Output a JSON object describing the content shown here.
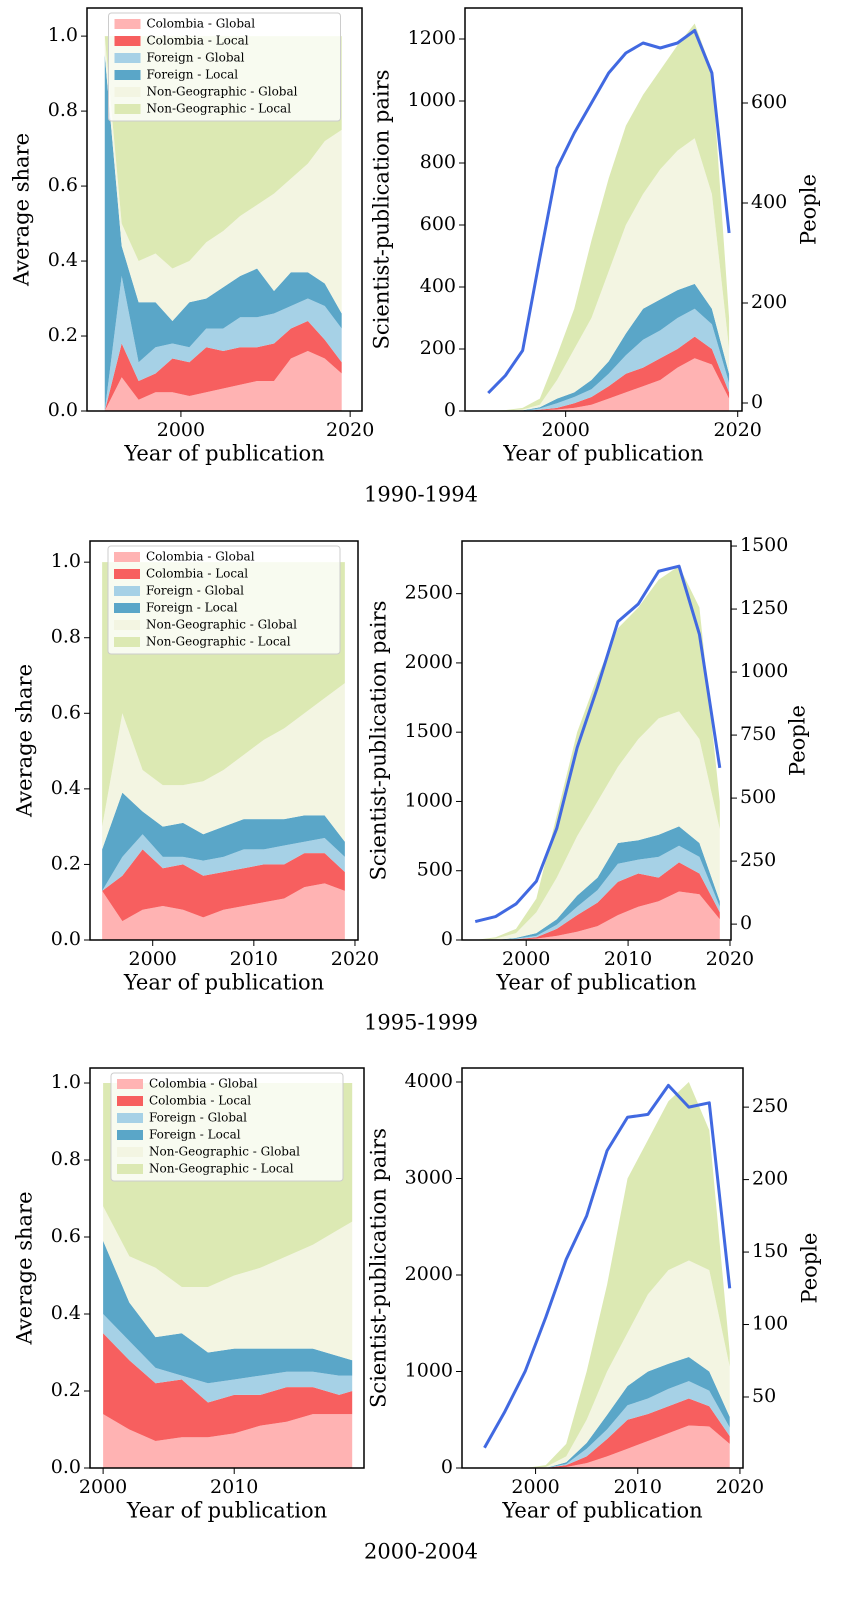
{
  "captions": [
    "1990-1994",
    "1995-1999",
    "2000-2004"
  ],
  "chart_data": [
    {
      "type": "area",
      "xlabel": "Year of publication",
      "ylabel": "Average share",
      "legend": "upper center",
      "x": [
        1991,
        1993,
        1995,
        1997,
        1999,
        2001,
        2003,
        2005,
        2007,
        2009,
        2011,
        2013,
        2015,
        2017,
        2019
      ],
      "xlim": [
        1988.9,
        2021.4
      ],
      "xticks": [
        2000,
        2020
      ],
      "ylim": [
        0,
        1.075
      ],
      "yticks": [
        {
          "value": 0,
          "label": "0.0"
        },
        0.2,
        0.4,
        0.6,
        0.8,
        {
          "value": 1,
          "label": "1.0"
        }
      ],
      "series": [
        {
          "name": "Colombia - Global",
          "color": "#ffb3b3",
          "values": [
            0,
            0.09,
            0.03,
            0.05,
            0.05,
            0.04,
            0.05,
            0.06,
            0.07,
            0.08,
            0.08,
            0.14,
            0.16,
            0.14,
            0.1
          ]
        },
        {
          "name": "Colombia - Local",
          "color": "#f75f5f",
          "values": [
            0,
            0.09,
            0.05,
            0.05,
            0.09,
            0.09,
            0.12,
            0.1,
            0.1,
            0.09,
            0.1,
            0.08,
            0.08,
            0.05,
            0.03
          ]
        },
        {
          "name": "Foreign - Global",
          "color": "#a6d1e6",
          "values": [
            0,
            0.18,
            0.05,
            0.07,
            0.04,
            0.04,
            0.05,
            0.06,
            0.08,
            0.08,
            0.08,
            0.06,
            0.06,
            0.09,
            0.09
          ]
        },
        {
          "name": "Foreign - Local",
          "color": "#5aa6c8",
          "values": [
            0.95,
            0.08,
            0.16,
            0.12,
            0.06,
            0.12,
            0.08,
            0.11,
            0.11,
            0.13,
            0.06,
            0.09,
            0.07,
            0.06,
            0.04
          ]
        },
        {
          "name": "Non-Geographic - Global",
          "color": "#f3f5e2",
          "values": [
            0.05,
            0.06,
            0.11,
            0.13,
            0.14,
            0.11,
            0.15,
            0.15,
            0.16,
            0.17,
            0.26,
            0.25,
            0.29,
            0.38,
            0.49
          ]
        },
        {
          "name": "Non-Geographic - Local",
          "color": "#dce9b3",
          "values": [
            0,
            0.5,
            0.6,
            0.58,
            0.62,
            0.6,
            0.55,
            0.52,
            0.48,
            0.45,
            0.42,
            0.38,
            0.34,
            0.28,
            0.25
          ]
        }
      ]
    },
    {
      "type": "area",
      "xlabel": "Year of publication",
      "ylabel": "Scientist-publication pairs",
      "y2label": "People",
      "x": [
        1991,
        1993,
        1995,
        1997,
        1999,
        2001,
        2003,
        2005,
        2007,
        2009,
        2011,
        2013,
        2015,
        2017,
        2019
      ],
      "xlim": [
        1988.3,
        2020.5
      ],
      "xticks": [
        2000,
        2020
      ],
      "ylim": [
        0,
        1300
      ],
      "yticks": [
        0,
        200,
        400,
        600,
        800,
        1000,
        1200
      ],
      "y2lim": [
        -16,
        790
      ],
      "y2ticks": [
        0,
        200,
        400,
        600
      ],
      "series": [
        {
          "color": "#ffb3b3",
          "values": [
            0,
            0,
            0,
            2,
            5,
            10,
            20,
            40,
            60,
            80,
            100,
            140,
            170,
            150,
            40
          ]
        },
        {
          "color": "#f75f5f",
          "values": [
            0,
            0,
            0,
            2,
            5,
            15,
            25,
            40,
            60,
            60,
            70,
            60,
            70,
            50,
            20
          ]
        },
        {
          "color": "#a6d1e6",
          "values": [
            0,
            0,
            1,
            4,
            15,
            20,
            25,
            40,
            60,
            90,
            90,
            100,
            90,
            80,
            30
          ]
        },
        {
          "color": "#5aa6c8",
          "values": [
            0,
            0,
            1,
            4,
            15,
            15,
            30,
            40,
            70,
            100,
            100,
            90,
            80,
            50,
            30
          ]
        },
        {
          "color": "#f3f5e2",
          "values": [
            0,
            2,
            3,
            8,
            60,
            140,
            200,
            290,
            350,
            370,
            420,
            450,
            470,
            370,
            80
          ]
        },
        {
          "color": "#dce9b3",
          "values": [
            0,
            1,
            5,
            20,
            80,
            130,
            250,
            300,
            320,
            320,
            320,
            340,
            370,
            400,
            100
          ]
        },
        {
          "type": "line",
          "axis": "y2",
          "color": "#4169e1",
          "values": [
            20,
            55,
            105,
            290,
            470,
            540,
            600,
            660,
            700,
            720,
            710,
            720,
            745,
            660,
            340
          ]
        }
      ]
    },
    {
      "type": "area",
      "xlabel": "Year of publication",
      "ylabel": "Average share",
      "legend": "upper center",
      "x": [
        1995,
        1997,
        1999,
        2001,
        2003,
        2005,
        2007,
        2009,
        2011,
        2013,
        2015,
        2017,
        2019
      ],
      "xlim": [
        1993.8,
        2020.3
      ],
      "xticks": [
        2000,
        2010,
        2020
      ],
      "ylim": [
        0,
        1.056
      ],
      "yticks": [
        {
          "value": 0,
          "label": "0.0"
        },
        0.2,
        0.4,
        0.6,
        0.8,
        {
          "value": 1,
          "label": "1.0"
        }
      ],
      "series": [
        {
          "name": "Colombia - Global",
          "color": "#ffb3b3",
          "values": [
            0.13,
            0.05,
            0.08,
            0.09,
            0.08,
            0.06,
            0.08,
            0.09,
            0.1,
            0.11,
            0.14,
            0.15,
            0.13
          ]
        },
        {
          "name": "Colombia - Local",
          "color": "#f75f5f",
          "values": [
            0,
            0.12,
            0.16,
            0.1,
            0.12,
            0.11,
            0.1,
            0.1,
            0.1,
            0.09,
            0.09,
            0.08,
            0.05
          ]
        },
        {
          "name": "Foreign - Global",
          "color": "#a6d1e6",
          "values": [
            0,
            0.05,
            0.04,
            0.03,
            0.02,
            0.04,
            0.04,
            0.05,
            0.04,
            0.05,
            0.03,
            0.04,
            0.04
          ]
        },
        {
          "name": "Foreign - Local",
          "color": "#5aa6c8",
          "values": [
            0.11,
            0.17,
            0.06,
            0.08,
            0.09,
            0.07,
            0.08,
            0.08,
            0.08,
            0.07,
            0.07,
            0.06,
            0.04
          ]
        },
        {
          "name": "Non-Geographic - Global",
          "color": "#f3f5e2",
          "values": [
            0.06,
            0.21,
            0.11,
            0.11,
            0.1,
            0.14,
            0.15,
            0.17,
            0.21,
            0.24,
            0.27,
            0.31,
            0.42
          ]
        },
        {
          "name": "Non-Geographic - Local",
          "color": "#dce9b3",
          "values": [
            0.7,
            0.4,
            0.55,
            0.59,
            0.59,
            0.58,
            0.55,
            0.51,
            0.47,
            0.44,
            0.4,
            0.36,
            0.32
          ]
        }
      ]
    },
    {
      "type": "area",
      "xlabel": "Year of publication",
      "ylabel": "Scientist-publication pairs",
      "y2label": "People",
      "x": [
        1995,
        1997,
        1999,
        2001,
        2003,
        2005,
        2007,
        2009,
        2011,
        2013,
        2015,
        2017,
        2019
      ],
      "xlim": [
        1993.7,
        2020.1
      ],
      "xticks": [
        2000,
        2010,
        2020
      ],
      "ylim": [
        0,
        2880
      ],
      "yticks": [
        0,
        500,
        1000,
        1500,
        2000,
        2500
      ],
      "y2lim": [
        -63,
        1520
      ],
      "y2ticks": [
        0,
        250,
        500,
        750,
        1000,
        1250,
        1500
      ],
      "series": [
        {
          "color": "#ffb3b3",
          "values": [
            0,
            0,
            2,
            10,
            30,
            60,
            100,
            180,
            240,
            280,
            350,
            330,
            150
          ]
        },
        {
          "color": "#f75f5f",
          "values": [
            0,
            0,
            3,
            10,
            50,
            120,
            170,
            240,
            240,
            170,
            210,
            150,
            50
          ]
        },
        {
          "color": "#a6d1e6",
          "values": [
            0,
            0,
            5,
            10,
            30,
            60,
            90,
            130,
            100,
            150,
            120,
            120,
            40
          ]
        },
        {
          "color": "#5aa6c8",
          "values": [
            0,
            0,
            5,
            20,
            40,
            80,
            90,
            150,
            140,
            160,
            140,
            100,
            40
          ]
        },
        {
          "color": "#f3f5e2",
          "values": [
            0,
            10,
            35,
            150,
            300,
            430,
            550,
            550,
            730,
            840,
            830,
            750,
            520
          ]
        },
        {
          "color": "#dce9b3",
          "values": [
            0,
            10,
            30,
            100,
            450,
            750,
            900,
            1000,
            950,
            1000,
            1050,
            950,
            200
          ]
        },
        {
          "type": "line",
          "axis": "y2",
          "color": "#4169e1",
          "values": [
            10,
            30,
            80,
            170,
            380,
            700,
            940,
            1200,
            1270,
            1400,
            1420,
            1150,
            620
          ]
        }
      ]
    },
    {
      "type": "area",
      "xlabel": "Year of publication",
      "ylabel": "Average share",
      "legend": "upper center",
      "x": [
        2000,
        2002,
        2004,
        2006,
        2008,
        2010,
        2012,
        2014,
        2016,
        2018,
        2019
      ],
      "xlim": [
        1999.0,
        2019.9
      ],
      "xticks": [
        2000,
        2010
      ],
      "ylim": [
        0,
        1.039
      ],
      "yticks": [
        {
          "value": 0,
          "label": "0.0"
        },
        0.2,
        0.4,
        0.6,
        0.8,
        {
          "value": 1,
          "label": "1.0"
        }
      ],
      "series": [
        {
          "name": "Colombia - Global",
          "color": "#ffb3b3",
          "values": [
            0.14,
            0.1,
            0.07,
            0.08,
            0.08,
            0.09,
            0.11,
            0.12,
            0.14,
            0.14,
            0.14
          ]
        },
        {
          "name": "Colombia - Local",
          "color": "#f75f5f",
          "values": [
            0.21,
            0.18,
            0.15,
            0.15,
            0.09,
            0.1,
            0.08,
            0.09,
            0.07,
            0.05,
            0.06
          ]
        },
        {
          "name": "Foreign - Global",
          "color": "#a6d1e6",
          "values": [
            0.05,
            0.05,
            0.04,
            0.01,
            0.05,
            0.04,
            0.05,
            0.04,
            0.04,
            0.05,
            0.04
          ]
        },
        {
          "name": "Foreign - Local",
          "color": "#5aa6c8",
          "values": [
            0.19,
            0.1,
            0.08,
            0.11,
            0.08,
            0.08,
            0.07,
            0.06,
            0.06,
            0.05,
            0.04
          ]
        },
        {
          "name": "Non-Geographic - Global",
          "color": "#f3f5e2",
          "values": [
            0.09,
            0.12,
            0.18,
            0.12,
            0.17,
            0.19,
            0.21,
            0.24,
            0.27,
            0.33,
            0.36
          ]
        },
        {
          "name": "Non-Geographic - Local",
          "color": "#dce9b3",
          "values": [
            0.32,
            0.45,
            0.48,
            0.53,
            0.53,
            0.5,
            0.48,
            0.45,
            0.42,
            0.38,
            0.36
          ]
        }
      ]
    },
    {
      "type": "area",
      "xlabel": "Year of publication",
      "ylabel": "Scientist-publication pairs",
      "y2label": "People",
      "x": [
        1995,
        1997,
        1999,
        2001,
        2003,
        2005,
        2007,
        2009,
        2011,
        2013,
        2015,
        2017,
        2019
      ],
      "xlim": [
        1992.8,
        2020.3
      ],
      "xticks": [
        2000,
        2010,
        2020
      ],
      "ylim": [
        0,
        4145
      ],
      "yticks": [
        0,
        1000,
        2000,
        3000,
        4000
      ],
      "y2lim": [
        1,
        277
      ],
      "y2ticks": [
        50,
        100,
        150,
        200,
        250
      ],
      "series": [
        {
          "color": "#ffb3b3",
          "values": [
            0,
            0,
            0,
            0,
            10,
            50,
            120,
            200,
            280,
            360,
            440,
            430,
            250
          ]
        },
        {
          "color": "#f75f5f",
          "values": [
            0,
            0,
            0,
            0,
            20,
            70,
            180,
            300,
            280,
            280,
            280,
            210,
            80
          ]
        },
        {
          "color": "#a6d1e6",
          "values": [
            0,
            0,
            0,
            0,
            10,
            80,
            100,
            150,
            160,
            180,
            180,
            160,
            90
          ]
        },
        {
          "color": "#5aa6c8",
          "values": [
            0,
            0,
            0,
            0,
            20,
            60,
            150,
            200,
            280,
            260,
            250,
            200,
            110
          ]
        },
        {
          "color": "#f3f5e2",
          "values": [
            0,
            0,
            0,
            10,
            60,
            240,
            450,
            550,
            800,
            970,
            1000,
            1050,
            520
          ]
        },
        {
          "color": "#dce9b3",
          "values": [
            0,
            0,
            0,
            20,
            130,
            500,
            900,
            1600,
            1600,
            1750,
            1850,
            1450,
            150
          ]
        },
        {
          "type": "line",
          "axis": "y2",
          "color": "#4169e1",
          "values": [
            15,
            40,
            68,
            105,
            145,
            175,
            220,
            243,
            245,
            265,
            250,
            253,
            125
          ]
        }
      ]
    }
  ]
}
